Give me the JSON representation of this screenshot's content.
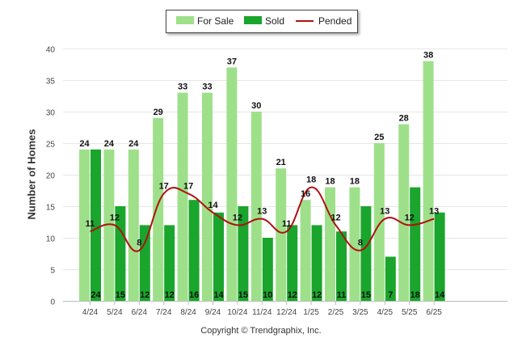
{
  "legend": {
    "for_sale": "For Sale",
    "sold": "Sold",
    "pended": "Pended"
  },
  "footer": "Copyright © Trendgraphix, Inc.",
  "colors": {
    "for_sale": "#9ee08a",
    "sold": "#1aa52c",
    "pended": "#b01010",
    "grid": "#e6e6e6"
  },
  "chart_data": {
    "type": "bar",
    "categories": [
      "4/24",
      "5/24",
      "6/24",
      "7/24",
      "8/24",
      "9/24",
      "10/24",
      "11/24",
      "12/24",
      "1/25",
      "2/25",
      "3/25",
      "4/25",
      "5/25",
      "6/25"
    ],
    "series": [
      {
        "name": "For Sale",
        "type": "bar",
        "values": [
          24,
          24,
          24,
          29,
          33,
          33,
          37,
          30,
          21,
          16,
          18,
          18,
          25,
          28,
          38
        ]
      },
      {
        "name": "Sold",
        "type": "bar",
        "values": [
          24,
          15,
          12,
          12,
          16,
          14,
          15,
          10,
          12,
          12,
          11,
          15,
          7,
          18,
          14
        ]
      },
      {
        "name": "Pended",
        "type": "line",
        "values": [
          11,
          12,
          8,
          17,
          17,
          14,
          12,
          13,
          11,
          18,
          12,
          8,
          13,
          12,
          13
        ]
      }
    ],
    "ylabel": "Number of Homes",
    "xlabel": "",
    "ylim": [
      0,
      40
    ],
    "yticks": [
      0,
      5,
      10,
      15,
      20,
      25,
      30,
      35,
      40
    ],
    "grid": true,
    "legend_position": "top-center"
  }
}
